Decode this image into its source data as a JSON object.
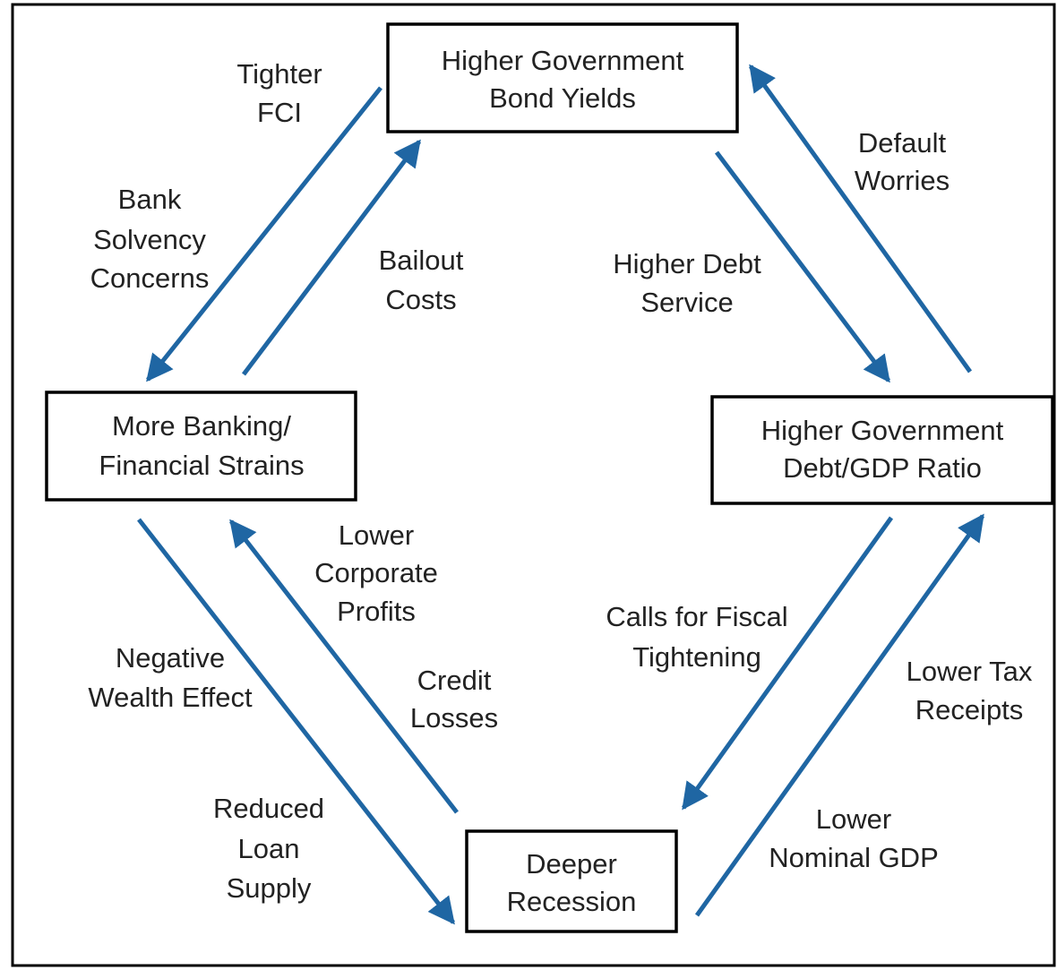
{
  "nodes": [
    {
      "lines": [
        "Higher Government",
        "Bond Yields"
      ]
    },
    {
      "lines": [
        "More Banking/",
        "Financial Strains"
      ]
    },
    {
      "lines": [
        "Higher Government",
        "Debt/GDP Ratio"
      ]
    },
    {
      "lines": [
        "Deeper",
        "Recession"
      ]
    }
  ],
  "edge_labels": [
    {
      "lines": [
        "Tighter",
        "FCI"
      ]
    },
    {
      "lines": [
        "Bank",
        "Solvency",
        "Concerns"
      ]
    },
    {
      "lines": [
        "Bailout",
        "Costs"
      ]
    },
    {
      "lines": [
        "Higher Debt",
        "Service"
      ]
    },
    {
      "lines": [
        "Default",
        "Worries"
      ]
    },
    {
      "lines": [
        "Lower",
        "Corporate",
        "Profits"
      ]
    },
    {
      "lines": [
        "Negative",
        "Wealth Effect"
      ]
    },
    {
      "lines": [
        "Credit",
        "Losses"
      ]
    },
    {
      "lines": [
        "Reduced",
        "Loan",
        "Supply"
      ]
    },
    {
      "lines": [
        "Calls for Fiscal",
        "Tightening"
      ]
    },
    {
      "lines": [
        "Lower Tax",
        "Receipts"
      ]
    },
    {
      "lines": [
        "Lower",
        "Nominal GDP"
      ]
    }
  ]
}
